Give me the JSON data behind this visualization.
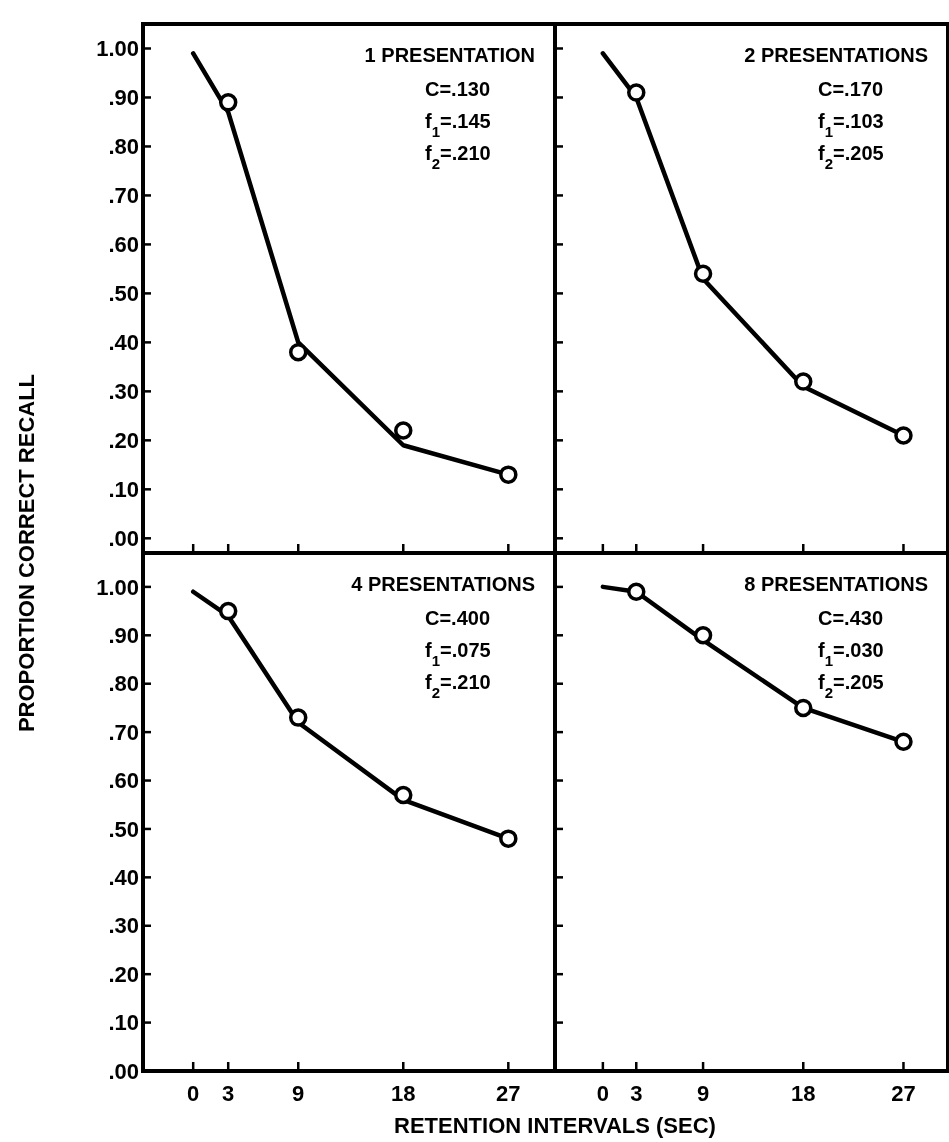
{
  "chart_data": [
    {
      "type": "scatter",
      "title": "1 PRESENTATION",
      "ylabel": "PROPORTION CORRECT RECALL",
      "annotations": [
        "C=.130",
        "f$_{1}$=.145",
        "f$_{2}$=.210"
      ],
      "xlim": [
        -4.3,
        31
      ],
      "xticks": [
        0,
        3,
        9,
        18,
        27
      ],
      "ylim": [
        -0.03,
        1.05
      ],
      "yticks": [
        {
          "value": 0,
          "label": ".00"
        },
        {
          "value": 0.1,
          "label": ".10"
        },
        {
          "value": 0.2,
          "label": ".20"
        },
        {
          "value": 0.3,
          "label": ".30"
        },
        {
          "value": 0.4,
          "label": ".40"
        },
        {
          "value": 0.5,
          "label": ".50"
        },
        {
          "value": 0.6,
          "label": ".60"
        },
        {
          "value": 0.7,
          "label": ".70"
        },
        {
          "value": 0.8,
          "label": ".80"
        },
        {
          "value": 0.9,
          "label": ".90"
        },
        {
          "value": 1,
          "label": "1.00"
        }
      ],
      "tick_labels": "y",
      "series": [
        {
          "type": "line",
          "color": "#000000",
          "marker": "none",
          "line_style": "solid",
          "x": [
            0,
            3,
            9,
            18,
            27
          ],
          "values": [
            0.99,
            0.87,
            0.4,
            0.19,
            0.13
          ]
        },
        {
          "color": "#000000",
          "marker": "circle",
          "x": [
            3,
            9,
            18,
            27
          ],
          "values": [
            0.89,
            0.38,
            0.22,
            0.13
          ]
        }
      ]
    },
    {
      "type": "scatter",
      "title": "2 PRESENTATIONS",
      "annotations": [
        "C=.170",
        "f$_{1}$=.103",
        "f$_{2}$=.205"
      ],
      "xlim": [
        -4.3,
        31
      ],
      "xticks": [
        0,
        3,
        9,
        18,
        27
      ],
      "ylim": [
        -0.03,
        1.05
      ],
      "yticks": [
        0,
        0.1,
        0.2,
        0.3,
        0.4,
        0.5,
        0.6,
        0.7,
        0.8,
        0.9,
        1
      ],
      "tick_labels": false,
      "series": [
        {
          "type": "line",
          "color": "#000000",
          "marker": "none",
          "line_style": "solid",
          "x": [
            0,
            3,
            9,
            18,
            27
          ],
          "values": [
            0.99,
            0.9,
            0.53,
            0.31,
            0.21
          ]
        },
        {
          "color": "#000000",
          "marker": "circle",
          "x": [
            3,
            9,
            18,
            27
          ],
          "values": [
            0.91,
            0.54,
            0.32,
            0.21
          ]
        }
      ]
    },
    {
      "type": "scatter",
      "title": "4 PRESENTATIONS",
      "xlabel": "RETENTION INTERVALS (SEC)",
      "annotations": [
        "C=.400",
        "f$_{1}$=.075",
        "f$_{2}$=.210"
      ],
      "xlim": [
        -4.3,
        31
      ],
      "xticks": [
        0,
        3,
        9,
        18,
        27
      ],
      "ylim": [
        0,
        1.07
      ],
      "yticks": [
        {
          "value": 0,
          "label": ".00"
        },
        {
          "value": 0.1,
          "label": ".10"
        },
        {
          "value": 0.2,
          "label": ".20"
        },
        {
          "value": 0.3,
          "label": ".30"
        },
        {
          "value": 0.4,
          "label": ".40"
        },
        {
          "value": 0.5,
          "label": ".50"
        },
        {
          "value": 0.6,
          "label": ".60"
        },
        {
          "value": 0.7,
          "label": ".70"
        },
        {
          "value": 0.8,
          "label": ".80"
        },
        {
          "value": 0.9,
          "label": ".90"
        },
        {
          "value": 1,
          "label": "1.00"
        }
      ],
      "series": [
        {
          "type": "line",
          "color": "#000000",
          "marker": "none",
          "line_style": "solid",
          "x": [
            0,
            3,
            9,
            18,
            27
          ],
          "values": [
            0.99,
            0.94,
            0.72,
            0.56,
            0.48
          ]
        },
        {
          "color": "#000000",
          "marker": "circle",
          "x": [
            3,
            9,
            18,
            27
          ],
          "values": [
            0.95,
            0.73,
            0.57,
            0.48
          ]
        }
      ]
    },
    {
      "type": "scatter",
      "title": "8 PRESENTATIONS",
      "annotations": [
        "C=.430",
        "f$_{1}$=.030",
        "f$_{2}$=.205"
      ],
      "xlim": [
        -4.3,
        31
      ],
      "xticks": [
        0,
        3,
        9,
        18,
        27
      ],
      "ylim": [
        0,
        1.07
      ],
      "yticks": [
        0,
        0.1,
        0.2,
        0.3,
        0.4,
        0.5,
        0.6,
        0.7,
        0.8,
        0.9,
        1
      ],
      "tick_labels": "x",
      "series": [
        {
          "type": "line",
          "color": "#000000",
          "marker": "none",
          "line_style": "solid",
          "x": [
            0,
            3,
            9,
            18,
            27
          ],
          "values": [
            1.0,
            0.99,
            0.89,
            0.75,
            0.68
          ]
        },
        {
          "color": "#000000",
          "marker": "circle",
          "x": [
            3,
            9,
            18,
            27
          ],
          "values": [
            0.99,
            0.9,
            0.75,
            0.68
          ]
        }
      ]
    }
  ]
}
